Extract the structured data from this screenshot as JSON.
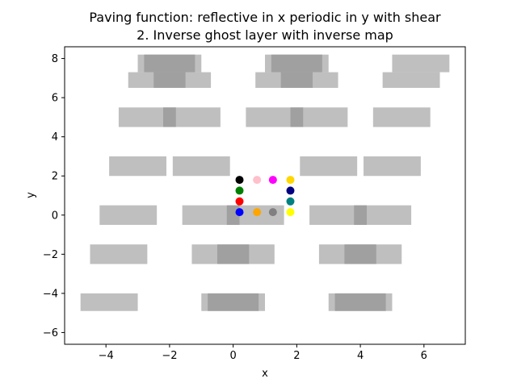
{
  "chart_data": {
    "type": "scatter",
    "title_line1": "Paving function: reflective in x periodic in y with shear",
    "title_line2": "2. Inverse ghost layer with inverse map",
    "xlabel": "x",
    "ylabel": "y",
    "xlim": [
      -5.3,
      7.3
    ],
    "ylim": [
      -6.6,
      8.6
    ],
    "xticks": [
      -4,
      -2,
      0,
      2,
      4,
      6
    ],
    "yticks": [
      -6,
      -4,
      -2,
      0,
      2,
      4,
      6,
      8
    ],
    "xtick_labels": [
      "−4",
      "−2",
      "0",
      "2",
      "4",
      "6"
    ],
    "ytick_labels": [
      "−6",
      "−4",
      "−2",
      "0",
      "2",
      "4",
      "6",
      "8"
    ],
    "grid": false,
    "colors": {
      "light_patch": "#bfbfbf",
      "dark_patch": "#a0a0a0"
    },
    "light_rectangles": [
      {
        "x0": -3.0,
        "x1": -1.0,
        "y0": 7.3,
        "y1": 8.2
      },
      {
        "x0": 1.0,
        "x1": 3.0,
        "y0": 7.3,
        "y1": 8.2
      },
      {
        "x0": 5.0,
        "x1": 6.8,
        "y0": 7.3,
        "y1": 8.2
      },
      {
        "x0": -3.3,
        "x1": -0.7,
        "y0": 6.5,
        "y1": 7.3
      },
      {
        "x0": 0.7,
        "x1": 3.3,
        "y0": 6.5,
        "y1": 7.3
      },
      {
        "x0": 4.7,
        "x1": 6.5,
        "y0": 6.5,
        "y1": 7.3
      },
      {
        "x0": -3.6,
        "x1": -0.4,
        "y0": 4.5,
        "y1": 5.5
      },
      {
        "x0": 0.4,
        "x1": 3.6,
        "y0": 4.5,
        "y1": 5.5
      },
      {
        "x0": 4.4,
        "x1": 6.2,
        "y0": 4.5,
        "y1": 5.5
      },
      {
        "x0": -3.9,
        "x1": -2.1,
        "y0": 2.0,
        "y1": 3.0
      },
      {
        "x0": -1.9,
        "x1": -0.1,
        "y0": 2.0,
        "y1": 3.0
      },
      {
        "x0": 2.1,
        "x1": 3.9,
        "y0": 2.0,
        "y1": 3.0
      },
      {
        "x0": 4.1,
        "x1": 5.9,
        "y0": 2.0,
        "y1": 3.0
      },
      {
        "x0": -4.2,
        "x1": -2.4,
        "y0": -0.5,
        "y1": 0.5
      },
      {
        "x0": -1.6,
        "x1": 1.6,
        "y0": -0.5,
        "y1": 0.5
      },
      {
        "x0": 2.4,
        "x1": 5.6,
        "y0": -0.5,
        "y1": 0.5
      },
      {
        "x0": -4.5,
        "x1": -2.7,
        "y0": -2.5,
        "y1": -1.5
      },
      {
        "x0": -1.3,
        "x1": 1.3,
        "y0": -2.5,
        "y1": -1.5
      },
      {
        "x0": 2.7,
        "x1": 5.3,
        "y0": -2.5,
        "y1": -1.5
      },
      {
        "x0": -4.8,
        "x1": -3.0,
        "y0": -4.9,
        "y1": -4.0
      },
      {
        "x0": -1.0,
        "x1": 1.0,
        "y0": -4.9,
        "y1": -4.0
      },
      {
        "x0": 3.0,
        "x1": 5.0,
        "y0": -4.9,
        "y1": -4.0
      }
    ],
    "dark_rectangles": [
      {
        "x0": -2.8,
        "x1": -1.2,
        "y0": 7.3,
        "y1": 8.2
      },
      {
        "x0": 1.2,
        "x1": 2.8,
        "y0": 7.3,
        "y1": 8.2
      },
      {
        "x0": -2.5,
        "x1": -1.5,
        "y0": 6.5,
        "y1": 7.3
      },
      {
        "x0": 1.5,
        "x1": 2.5,
        "y0": 6.5,
        "y1": 7.3
      },
      {
        "x0": -2.2,
        "x1": -1.8,
        "y0": 4.5,
        "y1": 5.5
      },
      {
        "x0": 1.8,
        "x1": 2.2,
        "y0": 4.5,
        "y1": 5.5
      },
      {
        "x0": -0.2,
        "x1": 0.2,
        "y0": -0.5,
        "y1": 0.5
      },
      {
        "x0": 3.8,
        "x1": 4.2,
        "y0": -0.5,
        "y1": 0.5
      },
      {
        "x0": -0.5,
        "x1": 0.5,
        "y0": -2.5,
        "y1": -1.5
      },
      {
        "x0": 3.5,
        "x1": 4.5,
        "y0": -2.5,
        "y1": -1.5
      },
      {
        "x0": -0.8,
        "x1": 0.8,
        "y0": -4.9,
        "y1": -4.0
      },
      {
        "x0": 3.2,
        "x1": 4.8,
        "y0": -4.9,
        "y1": -4.0
      }
    ],
    "points": [
      {
        "x": 0.2,
        "y": 1.8,
        "color": "#000000"
      },
      {
        "x": 0.2,
        "y": 1.25,
        "color": "#008000"
      },
      {
        "x": 0.2,
        "y": 0.7,
        "color": "#ff0000"
      },
      {
        "x": 0.2,
        "y": 0.15,
        "color": "#0000ff"
      },
      {
        "x": 0.75,
        "y": 1.8,
        "color": "#ffc0cb"
      },
      {
        "x": 1.25,
        "y": 1.8,
        "color": "#ff00ff"
      },
      {
        "x": 1.8,
        "y": 1.8,
        "color": "#ffd700"
      },
      {
        "x": 1.8,
        "y": 1.25,
        "color": "#000080"
      },
      {
        "x": 1.8,
        "y": 0.7,
        "color": "#008080"
      },
      {
        "x": 1.8,
        "y": 0.15,
        "color": "#ffff00"
      },
      {
        "x": 0.75,
        "y": 0.15,
        "color": "#ffa500"
      },
      {
        "x": 1.25,
        "y": 0.15,
        "color": "#808080"
      }
    ]
  }
}
